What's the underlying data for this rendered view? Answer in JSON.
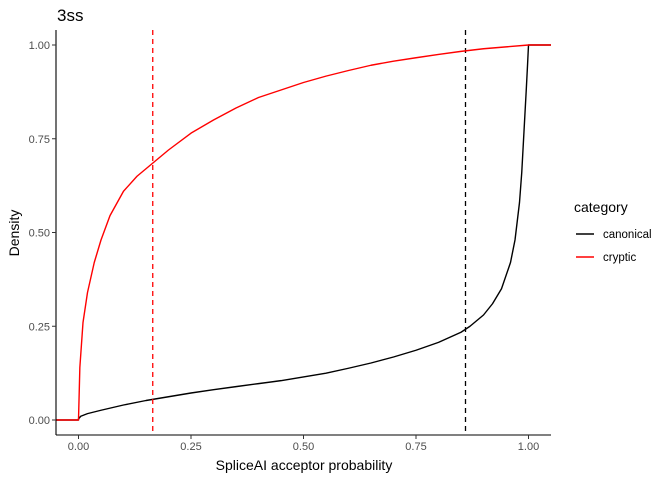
{
  "chart_data": {
    "type": "line",
    "title": "3ss",
    "xlabel": "SpliceAI acceptor probability",
    "ylabel": "Density",
    "xlim": [
      -0.05,
      1.05
    ],
    "ylim": [
      -0.04,
      1.04
    ],
    "xticks": [
      {
        "value": 0.0,
        "label": "0.00"
      },
      {
        "value": 0.25,
        "label": "0.25"
      },
      {
        "value": 0.5,
        "label": "0.50"
      },
      {
        "value": 0.75,
        "label": "0.75"
      },
      {
        "value": 1.0,
        "label": "1.00"
      }
    ],
    "yticks": [
      {
        "value": 0.0,
        "label": "0.00"
      },
      {
        "value": 0.25,
        "label": "0.25"
      },
      {
        "value": 0.5,
        "label": "0.50"
      },
      {
        "value": 0.75,
        "label": "0.75"
      },
      {
        "value": 1.0,
        "label": "1.00"
      }
    ],
    "grid": false,
    "legend": {
      "title": "category",
      "placement": "right"
    },
    "series": [
      {
        "name": "canonical",
        "color": "#000000",
        "x": [
          -0.05,
          0.0,
          0.0,
          0.005,
          0.02,
          0.05,
          0.1,
          0.15,
          0.2,
          0.25,
          0.3,
          0.35,
          0.4,
          0.45,
          0.5,
          0.55,
          0.6,
          0.65,
          0.7,
          0.75,
          0.8,
          0.85,
          0.87,
          0.9,
          0.92,
          0.94,
          0.96,
          0.97,
          0.98,
          0.985,
          0.99,
          0.995,
          0.998,
          1.0,
          1.05
        ],
        "y": [
          0.0,
          0.0,
          0.003,
          0.01,
          0.017,
          0.026,
          0.04,
          0.052,
          0.062,
          0.072,
          0.081,
          0.089,
          0.097,
          0.105,
          0.115,
          0.125,
          0.138,
          0.152,
          0.168,
          0.186,
          0.207,
          0.234,
          0.25,
          0.28,
          0.31,
          0.35,
          0.42,
          0.48,
          0.58,
          0.66,
          0.77,
          0.88,
          0.95,
          1.0,
          1.0
        ],
        "vline": 0.86
      },
      {
        "name": "cryptic",
        "color": "#ff0000",
        "x": [
          -0.05,
          0.0,
          0.0,
          0.003,
          0.01,
          0.02,
          0.035,
          0.05,
          0.07,
          0.1,
          0.13,
          0.165,
          0.2,
          0.25,
          0.3,
          0.35,
          0.4,
          0.45,
          0.5,
          0.55,
          0.6,
          0.65,
          0.7,
          0.75,
          0.8,
          0.85,
          0.9,
          0.95,
          1.0,
          1.05
        ],
        "y": [
          0.0,
          0.0,
          0.0,
          0.14,
          0.26,
          0.34,
          0.42,
          0.48,
          0.545,
          0.61,
          0.65,
          0.685,
          0.72,
          0.765,
          0.8,
          0.832,
          0.86,
          0.88,
          0.9,
          0.917,
          0.932,
          0.946,
          0.957,
          0.966,
          0.975,
          0.983,
          0.99,
          0.995,
          1.0,
          1.0
        ],
        "vline": 0.165
      }
    ]
  }
}
